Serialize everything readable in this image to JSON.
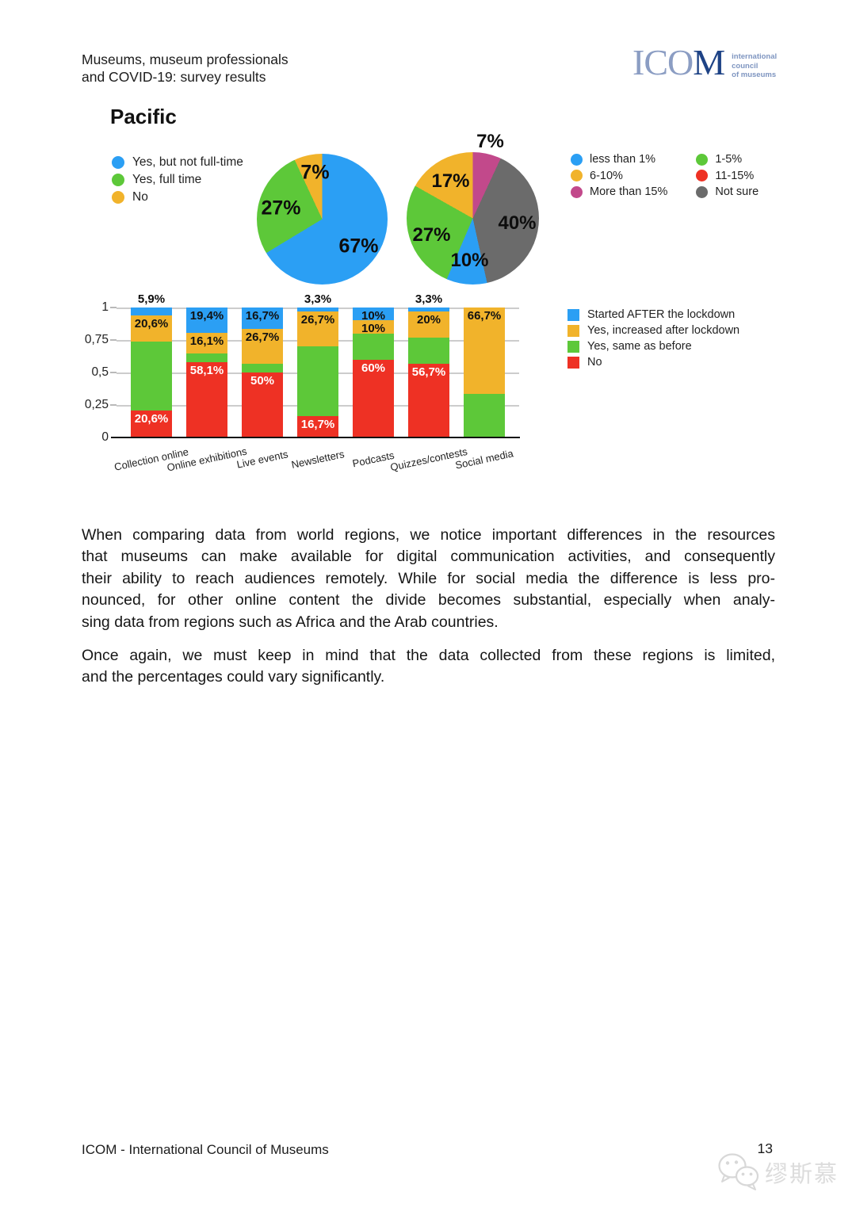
{
  "header": {
    "line1": "Museums, museum professionals",
    "line2": "and COVID-19: survey results"
  },
  "logo": {
    "wordmark_light": "ICO",
    "wordmark_dark": "M",
    "tagline_lines": [
      "international",
      "council",
      "of museums"
    ]
  },
  "title": "Pacific",
  "colors": {
    "blue": "#2B9FF4",
    "green": "#5DC839",
    "orange": "#F1B32B",
    "red": "#EE3124",
    "magenta": "#C2498B",
    "gray": "#6B6B6B",
    "grid": "#CCCCCC",
    "watermark": "#DCDCDC"
  },
  "chart_data": [
    {
      "type": "pie",
      "name": "staff-dedicated-to-digital",
      "start_angle": "top, clockwise",
      "slices": [
        {
          "label": "Yes, but not full-time",
          "value": 67,
          "display": "67%",
          "color": "#2B9FF4",
          "label_offset": [
            46,
            34
          ]
        },
        {
          "label": "Yes, full time",
          "value": 27,
          "display": "27%",
          "color": "#5DC839",
          "label_offset": [
            -52,
            -14
          ]
        },
        {
          "label": "No",
          "value": 7,
          "display": "7%",
          "color": "#F1B32B",
          "label_offset": [
            -9,
            -59
          ]
        }
      ],
      "legend": [
        {
          "label": "Yes, but not full-time",
          "color": "#2B9FF4"
        },
        {
          "label": "Yes, full time",
          "color": "#5DC839"
        },
        {
          "label": "No",
          "color": "#F1B32B"
        }
      ],
      "legend_position": "left"
    },
    {
      "type": "pie",
      "name": "budget-share-for-digital",
      "start_angle": "top, clockwise",
      "slices": [
        {
          "label": "More than 15%",
          "value": 7,
          "display": "7%",
          "color": "#C2498B",
          "label_offset": [
            22,
            -97
          ]
        },
        {
          "label": "Not sure",
          "value": 40,
          "display": "40%",
          "color": "#6B6B6B",
          "label_offset": [
            56,
            6
          ]
        },
        {
          "label": "less than 1%",
          "value": 10,
          "display": "10%",
          "color": "#2B9FF4",
          "label_offset": [
            -4,
            53
          ]
        },
        {
          "label": "1-5%",
          "value": 27,
          "display": "27%",
          "color": "#5DC839",
          "label_offset": [
            -52,
            21
          ]
        },
        {
          "label": "6-10%",
          "value": 17,
          "display": "17%",
          "color": "#F1B32B",
          "label_offset": [
            -28,
            -47
          ]
        }
      ],
      "legend_col1": [
        {
          "label": "less than 1%",
          "color": "#2B9FF4"
        },
        {
          "label": "6-10%",
          "color": "#F1B32B"
        },
        {
          "label": "More than 15%",
          "color": "#C2498B"
        }
      ],
      "legend_col2": [
        {
          "label": "1-5%",
          "color": "#5DC839"
        },
        {
          "label": "11-15%",
          "color": "#EE3124"
        },
        {
          "label": "Not sure",
          "color": "#6B6B6B"
        }
      ],
      "legend_position": "right"
    },
    {
      "type": "stacked-bar",
      "name": "online-activities-since-lockdown",
      "categories": [
        "Collection online",
        "Online exhibitions",
        "Live events",
        "Newsletters",
        "Podcasts",
        "Quizzes/contests",
        "Social media"
      ],
      "y_ticks": [
        "0",
        "0,25",
        "0,5",
        "0,75",
        "1"
      ],
      "ylim": [
        0,
        1
      ],
      "grid": true,
      "series": [
        {
          "name": "No",
          "color": "#EE3124",
          "label_color": "#FFFFFF",
          "values": [
            20.6,
            58.1,
            50,
            16.7,
            60,
            56.7,
            0
          ],
          "labels": [
            "20,6%",
            "58,1%",
            "50%",
            "16,7%",
            "60%",
            "56,7%",
            ""
          ]
        },
        {
          "name": "Yes, same as before",
          "color": "#5DC839",
          "label_color": "#111111",
          "values": [
            52.9,
            6.4,
            6.6,
            53.3,
            20,
            20,
            33.3
          ],
          "labels": [
            "",
            "",
            "",
            "",
            "",
            "",
            ""
          ]
        },
        {
          "name": "Yes, increased after lockdown",
          "color": "#F1B32B",
          "label_color": "#111111",
          "values": [
            20.6,
            16.1,
            26.7,
            26.7,
            10,
            20,
            66.7
          ],
          "labels": [
            "20,6%",
            "16,1%",
            "26,7%",
            "26,7%",
            "10%",
            "20%",
            "66,7%"
          ]
        },
        {
          "name": "Started AFTER the lockdown",
          "color": "#2B9FF4",
          "label_color": "#111111",
          "values": [
            5.9,
            19.4,
            16.7,
            3.3,
            10,
            3.3,
            0
          ],
          "labels": [
            "5,9%",
            "19,4%",
            "16,7%",
            "3,3%",
            "10%",
            "3,3%",
            ""
          ],
          "labels_above": [
            true,
            false,
            false,
            true,
            false,
            true,
            false
          ]
        }
      ],
      "legend": [
        {
          "label": "Started AFTER the lockdown",
          "color": "#2B9FF4"
        },
        {
          "label": "Yes, increased after lockdown",
          "color": "#F1B32B"
        },
        {
          "label": "Yes, same as before",
          "color": "#5DC839"
        },
        {
          "label": "No",
          "color": "#EE3124"
        }
      ],
      "legend_position": "right"
    }
  ],
  "paragraphs": [
    {
      "lines": [
        "When comparing data from world regions, we notice important differences in the resources",
        "that museums can make available for digital communication activities, and consequently",
        "their ability to reach audiences remotely. While for social media the difference is less pro-",
        "nounced, for other online content the divide becomes substantial, especially when analy-",
        "sing data from regions such as Africa and the Arab countries."
      ]
    },
    {
      "lines": [
        "Once again, we must keep in mind that the data collected from these regions is limited,",
        "and the percentages could vary significantly."
      ]
    }
  ],
  "footer": {
    "left": "ICOM - International Council of Museums",
    "page_number": "13",
    "watermark_text": "缪斯慕"
  }
}
